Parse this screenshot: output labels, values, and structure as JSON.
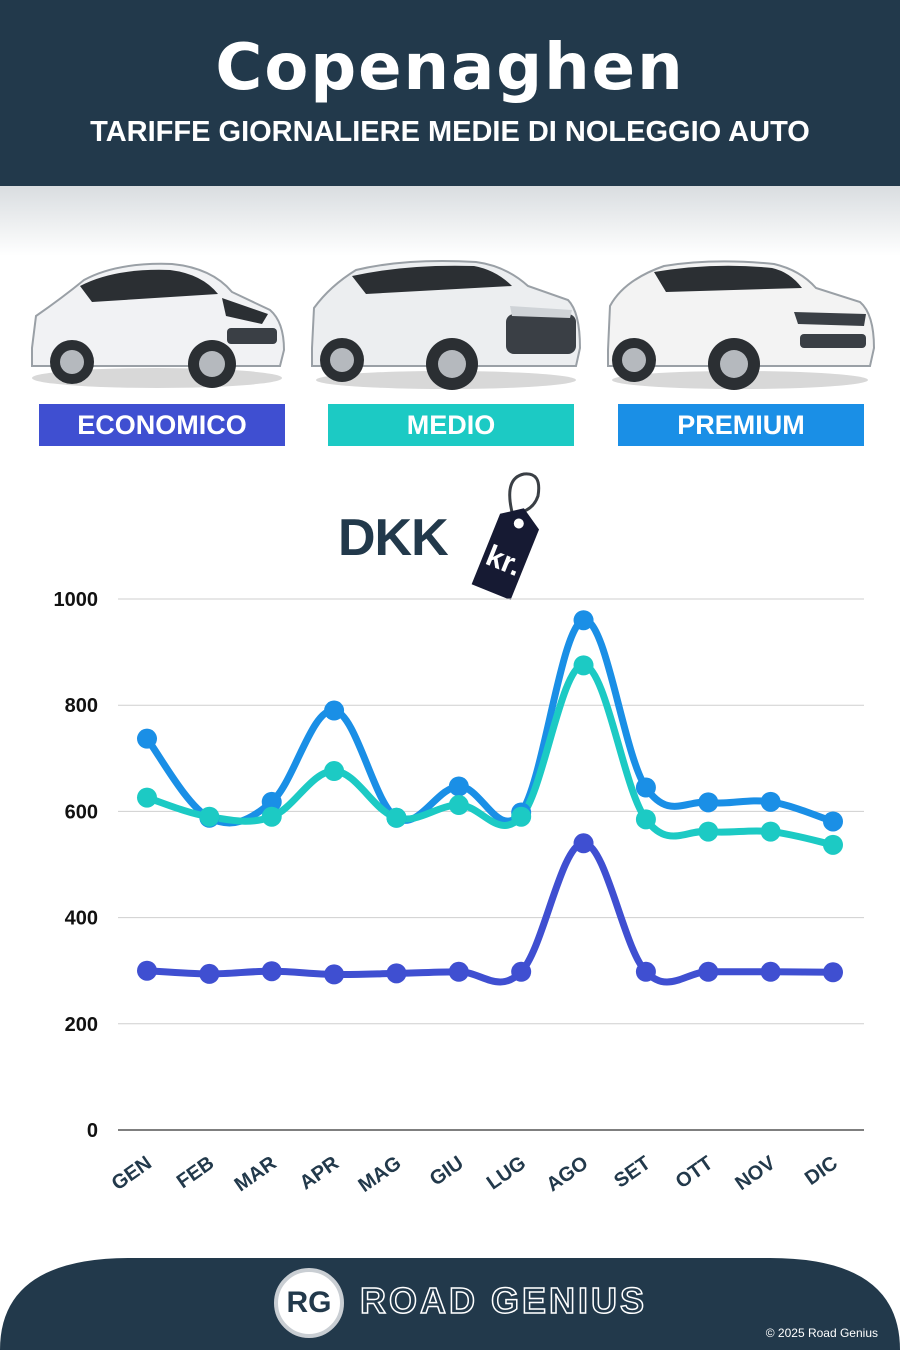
{
  "header": {
    "title": "Copenaghen",
    "subtitle": "TARIFFE GIORNALIERE MEDIE DI NOLEGGIO AUTO"
  },
  "categories": [
    {
      "label": "ECONOMICO",
      "color": "#3f4fd1"
    },
    {
      "label": "MEDIO",
      "color": "#1ccac4"
    },
    {
      "label": "PREMIUM",
      "color": "#1a8fe6"
    }
  ],
  "currency": {
    "code": "DKK",
    "symbol": "kr."
  },
  "chart_data": {
    "type": "line",
    "categories": [
      "GEN",
      "FEB",
      "MAR",
      "APR",
      "MAG",
      "GIU",
      "LUG",
      "AGO",
      "SET",
      "OTT",
      "NOV",
      "DIC"
    ],
    "ylim": [
      0,
      1000
    ],
    "yticks": [
      0,
      200,
      400,
      600,
      800,
      1000
    ],
    "grid": true,
    "series": [
      {
        "name": "PREMIUM",
        "color": "#1a8fe6",
        "values": [
          737,
          588,
          618,
          790,
          588,
          647,
          598,
          960,
          645,
          617,
          618,
          581
        ]
      },
      {
        "name": "MEDIO",
        "color": "#1ccac4",
        "values": [
          626,
          590,
          590,
          676,
          588,
          612,
          590,
          875,
          585,
          562,
          562,
          537
        ]
      },
      {
        "name": "ECONOMICO",
        "color": "#3f4fd1",
        "values": [
          300,
          294,
          299,
          293,
          295,
          298,
          298,
          540,
          298,
          298,
          298,
          297
        ]
      }
    ]
  },
  "footer": {
    "logo": "RG",
    "brand": "ROAD GENIUS",
    "copyright": "© 2025 Road Genius",
    "background": "#22394b"
  }
}
